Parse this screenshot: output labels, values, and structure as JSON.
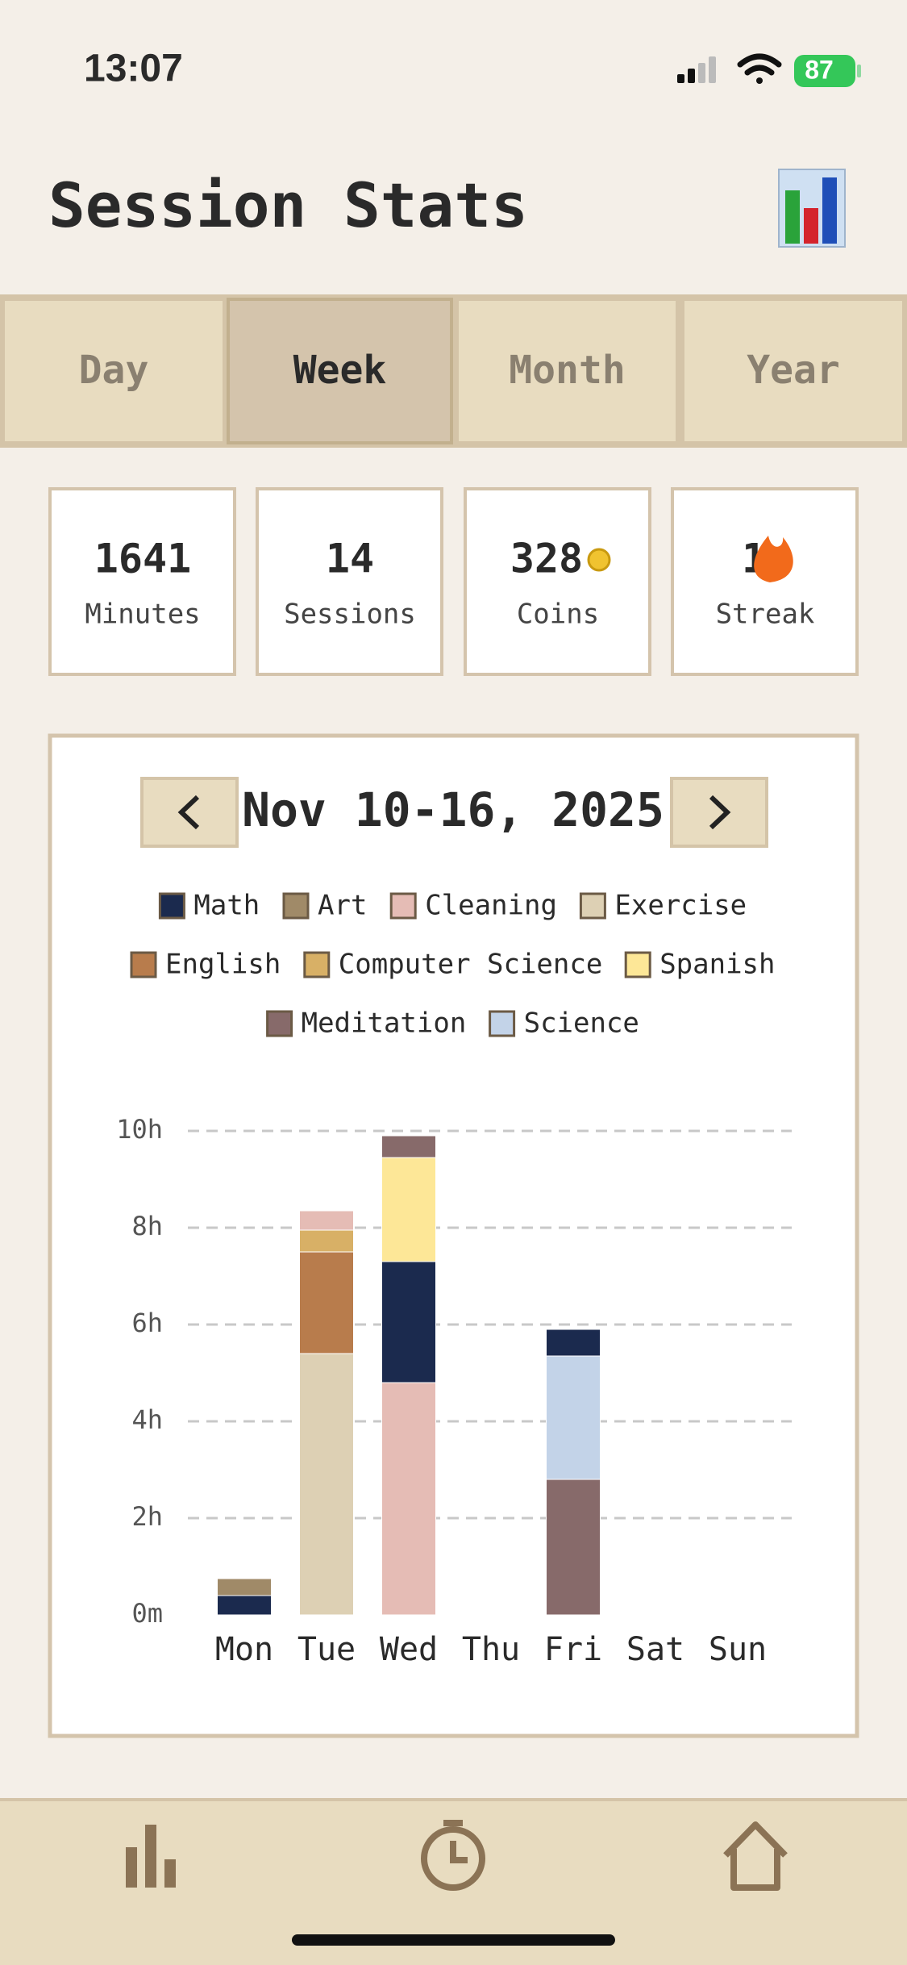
{
  "status_bar": {
    "time": "13:07",
    "battery": "87"
  },
  "header": {
    "title": "Session Stats"
  },
  "tabs": [
    "Day",
    "Week",
    "Month",
    "Year"
  ],
  "selected_tab": 1,
  "stats": [
    {
      "value": 1641,
      "label": "Minutes"
    },
    {
      "value": 14,
      "label": "Sessions"
    },
    {
      "value": 328,
      "label": "Coins"
    },
    {
      "value": 1,
      "label": "Streak"
    }
  ],
  "chart_data": {
    "type": "bar",
    "stacked": true,
    "title": "Nov 10-16, 2025",
    "categories": [
      "Mon",
      "Tue",
      "Wed",
      "Thu",
      "Fri",
      "Sat",
      "Sun"
    ],
    "series": [
      {
        "name": "Math",
        "color": "#1b2a4e",
        "values": [
          0.4,
          null,
          2.5,
          null,
          0.55,
          null,
          null
        ]
      },
      {
        "name": "Art",
        "color": "#a08a68",
        "values": [
          0.35,
          null,
          null,
          null,
          null,
          null,
          null
        ]
      },
      {
        "name": "Cleaning",
        "color": "#e5bcb5",
        "values": [
          null,
          0.4,
          4.8,
          null,
          null,
          null,
          null
        ]
      },
      {
        "name": "Exercise",
        "color": "#ddd0b4",
        "values": [
          null,
          5.4,
          null,
          null,
          null,
          null,
          null
        ]
      },
      {
        "name": "English",
        "color": "#b87c4c",
        "values": [
          null,
          2.1,
          null,
          null,
          null,
          null,
          null
        ]
      },
      {
        "name": "Computer Science",
        "color": "#d8b066",
        "values": [
          null,
          0.45,
          null,
          null,
          null,
          null,
          null
        ]
      },
      {
        "name": "Spanish",
        "color": "#fde797",
        "values": [
          null,
          null,
          2.15,
          null,
          null,
          null,
          null
        ]
      },
      {
        "name": "Meditation",
        "color": "#876a6a",
        "values": [
          null,
          null,
          0.45,
          null,
          2.8,
          null,
          null
        ]
      },
      {
        "name": "Science",
        "color": "#c3d3e8",
        "values": [
          null,
          null,
          null,
          null,
          2.55,
          null,
          null
        ]
      }
    ],
    "ylim": [
      0,
      10
    ],
    "yticks": [
      {
        "value": 0,
        "label": "0m"
      },
      {
        "value": 2,
        "label": "2h"
      },
      {
        "value": 4,
        "label": "4h"
      },
      {
        "value": 6,
        "label": "6h"
      },
      {
        "value": 8,
        "label": "8h"
      },
      {
        "value": 10,
        "label": "10h"
      }
    ],
    "grid": true
  }
}
